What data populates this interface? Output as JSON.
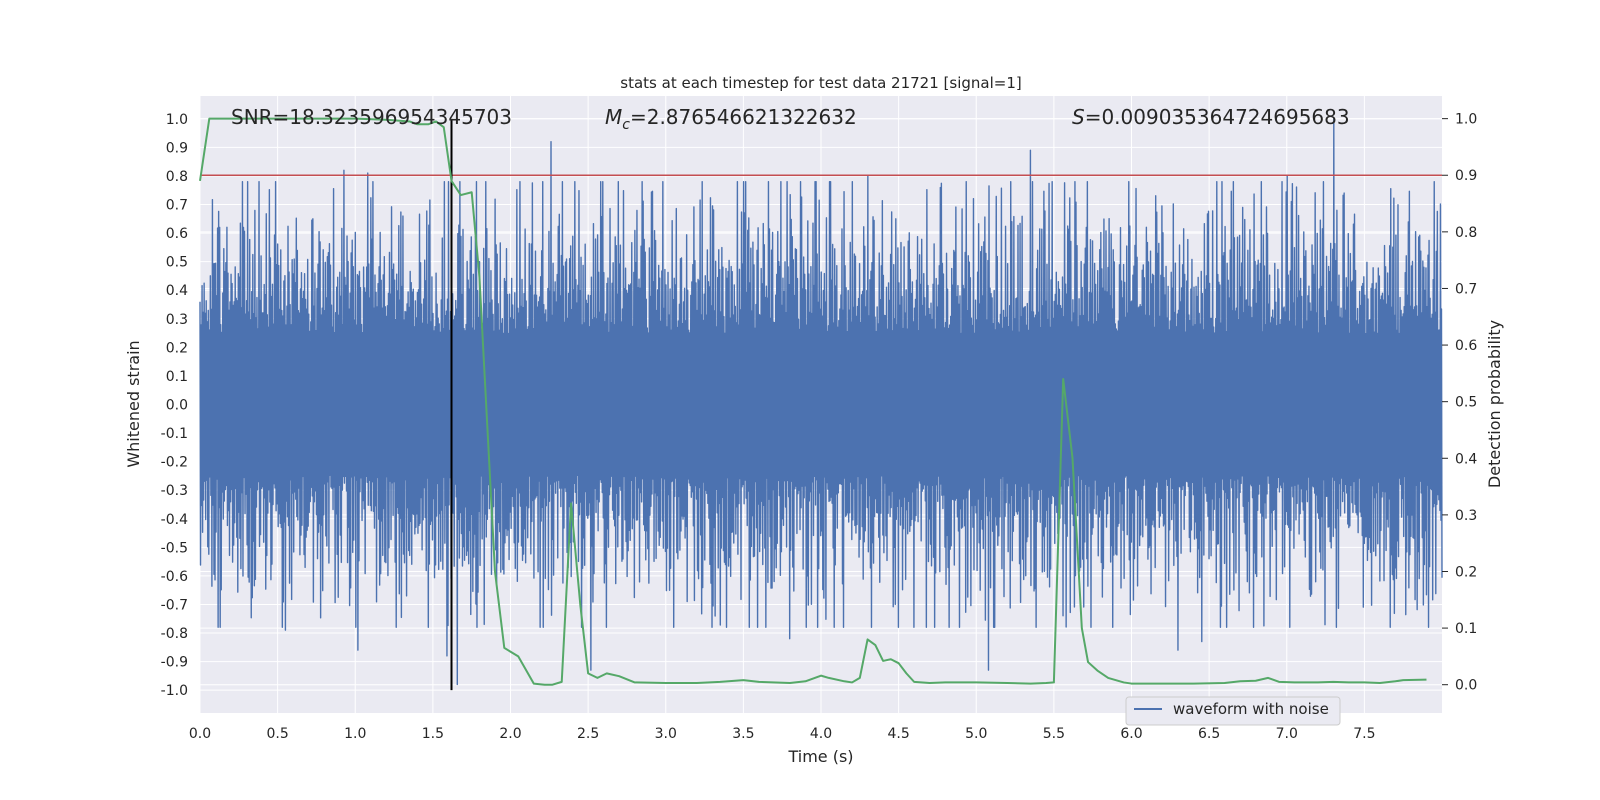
{
  "chart_data": {
    "type": "line",
    "title": "stats at each timestep for test data 21721 [signal=1]",
    "xlabel": "Time (s)",
    "ylabel_left": "Whitened strain",
    "ylabel_right": "Detection probability",
    "xlim": [
      0.0,
      8.0
    ],
    "ylim_left": [
      -1.08,
      1.08
    ],
    "ylim_right": [
      -0.05,
      1.04
    ],
    "grid": true,
    "legend_position": "bottom-center-right",
    "x_ticks": [
      "0.0",
      "0.5",
      "1.0",
      "1.5",
      "2.0",
      "2.5",
      "3.0",
      "3.5",
      "4.0",
      "4.5",
      "5.0",
      "5.5",
      "6.0",
      "6.5",
      "7.0",
      "7.5"
    ],
    "y_ticks_left": [
      "1.0",
      "0.9",
      "0.8",
      "0.7",
      "0.6",
      "0.5",
      "0.4",
      "0.3",
      "0.2",
      "0.1",
      "0.0",
      "-0.1",
      "-0.2",
      "-0.3",
      "-0.4",
      "-0.5",
      "-0.6",
      "-0.7",
      "-0.8",
      "-0.9",
      "-1.0"
    ],
    "y_ticks_right": [
      "1.0",
      "0.9",
      "0.8",
      "0.7",
      "0.6",
      "0.5",
      "0.4",
      "0.3",
      "0.2",
      "0.1",
      "0.0"
    ],
    "annotations": {
      "snr": "SNR=18.323596954345703",
      "mc_symbol": "M",
      "mc_subscript": "c",
      "mc_value": "=2.876546621322632",
      "s_symbol": "S",
      "s_value": "=0.009035364724695683"
    },
    "threshold": {
      "y_right": 0.9,
      "color": "#c44e52"
    },
    "merger_time": 1.62,
    "series": [
      {
        "name": "waveform with noise",
        "axis": "left",
        "color": "#4c72b0",
        "style": "noise-envelope",
        "typical_amplitude": 0.45,
        "peaks": [
          {
            "x": 0.93,
            "y": 0.82
          },
          {
            "x": 1.08,
            "y": 0.81
          },
          {
            "x": 2.26,
            "y": 0.92
          },
          {
            "x": 4.3,
            "y": 0.8
          },
          {
            "x": 5.35,
            "y": 0.89
          },
          {
            "x": 7.3,
            "y": 1.0
          },
          {
            "x": 7.0,
            "y": 0.8
          },
          {
            "x": 1.02,
            "y": -0.86
          },
          {
            "x": 1.59,
            "y": -0.88
          },
          {
            "x": 1.66,
            "y": -0.98
          },
          {
            "x": 2.52,
            "y": -0.93
          },
          {
            "x": 5.08,
            "y": -0.93
          },
          {
            "x": 6.3,
            "y": -0.86
          },
          {
            "x": 6.45,
            "y": -0.83
          },
          {
            "x": 0.55,
            "y": -0.79
          },
          {
            "x": 3.8,
            "y": -0.82
          }
        ]
      },
      {
        "name": "",
        "axis": "right",
        "color": "#55a868",
        "x": [
          0.0,
          0.06,
          0.2,
          0.4,
          0.6,
          0.8,
          1.0,
          1.2,
          1.35,
          1.4,
          1.47,
          1.52,
          1.57,
          1.62,
          1.68,
          1.75,
          1.8,
          1.85,
          1.9,
          1.96,
          2.05,
          2.15,
          2.22,
          2.27,
          2.33,
          2.39,
          2.45,
          2.5,
          2.56,
          2.62,
          2.7,
          2.8,
          3.0,
          3.2,
          3.35,
          3.5,
          3.6,
          3.8,
          3.9,
          4.0,
          4.05,
          4.15,
          4.2,
          4.25,
          4.3,
          4.35,
          4.4,
          4.45,
          4.5,
          4.55,
          4.6,
          4.7,
          4.8,
          5.0,
          5.2,
          5.35,
          5.45,
          5.5,
          5.56,
          5.62,
          5.68,
          5.72,
          5.78,
          5.85,
          5.95,
          6.0,
          6.2,
          6.4,
          6.6,
          6.7,
          6.8,
          6.88,
          6.95,
          7.05,
          7.2,
          7.3,
          7.4,
          7.5,
          7.6,
          7.7,
          7.75,
          7.9
        ],
        "y": [
          0.89,
          1.0,
          1.0,
          1.0,
          1.0,
          1.0,
          1.0,
          0.998,
          0.995,
          0.99,
          0.99,
          0.995,
          0.985,
          0.89,
          0.865,
          0.87,
          0.72,
          0.46,
          0.2,
          0.065,
          0.05,
          0.002,
          0.0,
          0.0,
          0.005,
          0.32,
          0.14,
          0.02,
          0.012,
          0.02,
          0.015,
          0.004,
          0.003,
          0.003,
          0.005,
          0.008,
          0.005,
          0.003,
          0.006,
          0.016,
          0.012,
          0.006,
          0.004,
          0.012,
          0.08,
          0.07,
          0.042,
          0.045,
          0.038,
          0.02,
          0.005,
          0.003,
          0.004,
          0.004,
          0.003,
          0.002,
          0.003,
          0.004,
          0.54,
          0.4,
          0.1,
          0.04,
          0.025,
          0.012,
          0.004,
          0.002,
          0.002,
          0.002,
          0.003,
          0.006,
          0.007,
          0.012,
          0.005,
          0.004,
          0.004,
          0.005,
          0.004,
          0.004,
          0.003,
          0.006,
          0.008,
          0.009
        ]
      }
    ]
  }
}
